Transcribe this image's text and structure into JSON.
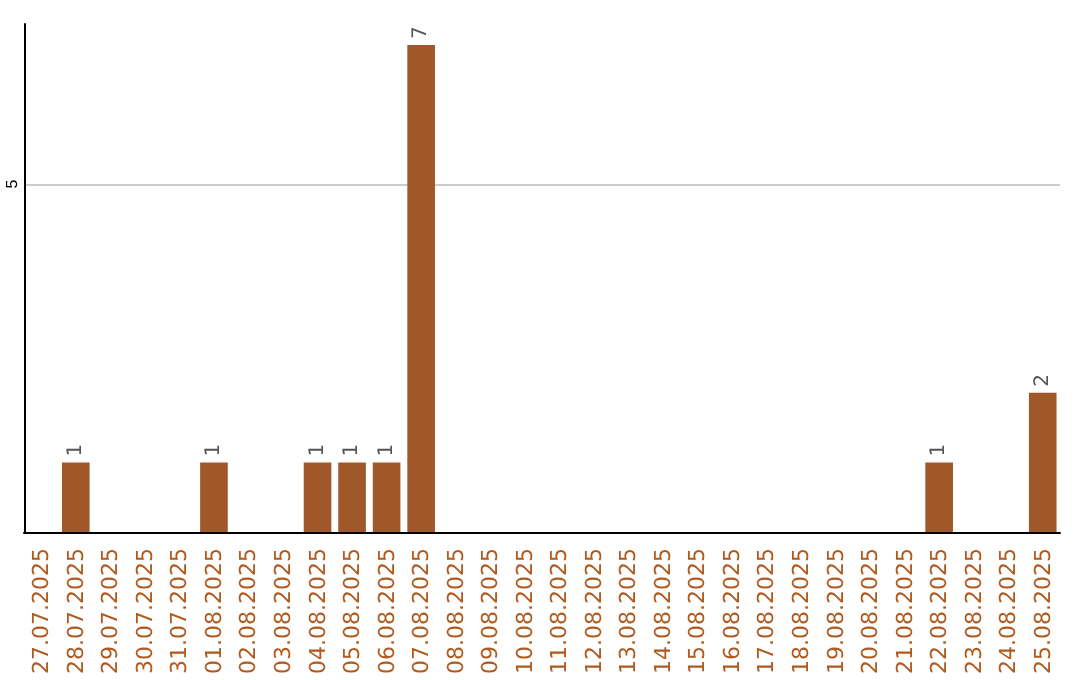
{
  "chart_data": {
    "type": "bar",
    "categories": [
      "27.07.2025",
      "28.07.2025",
      "29.07.2025",
      "30.07.2025",
      "31.07.2025",
      "01.08.2025",
      "02.08.2025",
      "03.08.2025",
      "04.08.2025",
      "05.08.2025",
      "06.08.2025",
      "07.08.2025",
      "08.08.2025",
      "09.08.2025",
      "10.08.2025",
      "11.08.2025",
      "12.08.2025",
      "13.08.2025",
      "14.08.2025",
      "15.08.2025",
      "16.08.2025",
      "17.08.2025",
      "18.08.2025",
      "19.08.2025",
      "20.08.2025",
      "21.08.2025",
      "22.08.2025",
      "23.08.2025",
      "24.08.2025",
      "25.08.2025"
    ],
    "values": [
      null,
      1,
      null,
      null,
      null,
      1,
      null,
      null,
      1,
      1,
      1,
      7,
      null,
      null,
      null,
      null,
      null,
      null,
      null,
      null,
      null,
      null,
      null,
      null,
      null,
      null,
      1,
      null,
      null,
      2
    ],
    "color": "#a0582a",
    "ylim": [
      0,
      7.3
    ],
    "yticks": [
      5
    ],
    "grid": "y",
    "data_labels": true
  }
}
